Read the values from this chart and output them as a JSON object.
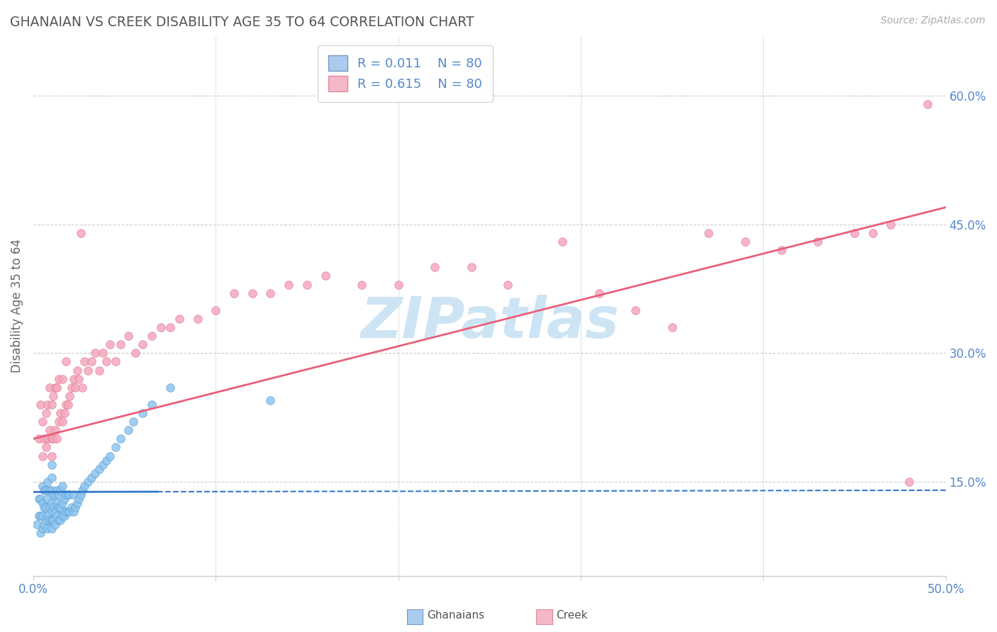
{
  "title": "GHANAIAN VS CREEK DISABILITY AGE 35 TO 64 CORRELATION CHART",
  "source_text": "Source: ZipAtlas.com",
  "ylabel": "Disability Age 35 to 64",
  "xlim": [
    0.0,
    0.5
  ],
  "ylim": [
    0.04,
    0.67
  ],
  "x_tick_labels": [
    "0.0%",
    "",
    "",
    "",
    "",
    "50.0%"
  ],
  "x_ticks": [
    0.0,
    0.1,
    0.2,
    0.3,
    0.4,
    0.5
  ],
  "y_ticks_right": [
    0.15,
    0.3,
    0.45,
    0.6
  ],
  "y_tick_labels_right": [
    "15.0%",
    "30.0%",
    "45.0%",
    "60.0%"
  ],
  "legend_r1": "R = 0.011",
  "legend_n1": "N = 80",
  "legend_r2": "R = 0.615",
  "legend_n2": "N = 80",
  "ghanaian_color": "#8ec6f0",
  "ghanaian_edge_color": "#5599cc",
  "creek_color": "#f4a8bc",
  "creek_edge_color": "#e07090",
  "ghanaian_line_color": "#3377cc",
  "creek_line_color": "#e8607a",
  "watermark": "ZIPatlas",
  "watermark_color": "#cde4f5",
  "background_color": "#ffffff",
  "grid_color": "#cccccc",
  "title_color": "#555555",
  "source_color": "#aaaaaa",
  "tick_color": "#5588cc",
  "legend_patch1_fc": "#aaccee",
  "legend_patch1_ec": "#7799bb",
  "legend_patch2_fc": "#f4b8c8",
  "legend_patch2_ec": "#e08898",
  "ghanaian_scatter_x": [
    0.002,
    0.003,
    0.003,
    0.004,
    0.004,
    0.004,
    0.005,
    0.005,
    0.005,
    0.005,
    0.006,
    0.006,
    0.006,
    0.007,
    0.007,
    0.007,
    0.008,
    0.008,
    0.008,
    0.008,
    0.009,
    0.009,
    0.009,
    0.01,
    0.01,
    0.01,
    0.01,
    0.01,
    0.01,
    0.01,
    0.011,
    0.011,
    0.011,
    0.012,
    0.012,
    0.012,
    0.013,
    0.013,
    0.013,
    0.014,
    0.014,
    0.014,
    0.015,
    0.015,
    0.015,
    0.016,
    0.016,
    0.016,
    0.017,
    0.017,
    0.018,
    0.018,
    0.019,
    0.019,
    0.02,
    0.02,
    0.021,
    0.022,
    0.022,
    0.023,
    0.024,
    0.025,
    0.026,
    0.027,
    0.028,
    0.03,
    0.032,
    0.034,
    0.036,
    0.038,
    0.04,
    0.042,
    0.045,
    0.048,
    0.052,
    0.055,
    0.06,
    0.065,
    0.075,
    0.13
  ],
  "ghanaian_scatter_y": [
    0.1,
    0.11,
    0.13,
    0.09,
    0.11,
    0.13,
    0.095,
    0.11,
    0.125,
    0.145,
    0.1,
    0.12,
    0.14,
    0.105,
    0.12,
    0.14,
    0.095,
    0.11,
    0.13,
    0.15,
    0.105,
    0.12,
    0.14,
    0.095,
    0.105,
    0.115,
    0.125,
    0.14,
    0.155,
    0.17,
    0.105,
    0.12,
    0.135,
    0.1,
    0.115,
    0.135,
    0.11,
    0.125,
    0.14,
    0.105,
    0.12,
    0.135,
    0.105,
    0.12,
    0.14,
    0.11,
    0.125,
    0.145,
    0.11,
    0.13,
    0.115,
    0.135,
    0.115,
    0.135,
    0.115,
    0.135,
    0.12,
    0.115,
    0.135,
    0.12,
    0.125,
    0.13,
    0.135,
    0.14,
    0.145,
    0.15,
    0.155,
    0.16,
    0.165,
    0.17,
    0.175,
    0.18,
    0.19,
    0.2,
    0.21,
    0.22,
    0.23,
    0.24,
    0.26,
    0.245
  ],
  "creek_scatter_x": [
    0.003,
    0.004,
    0.005,
    0.005,
    0.006,
    0.007,
    0.007,
    0.008,
    0.008,
    0.009,
    0.009,
    0.01,
    0.01,
    0.01,
    0.011,
    0.011,
    0.012,
    0.012,
    0.013,
    0.013,
    0.014,
    0.014,
    0.015,
    0.016,
    0.016,
    0.017,
    0.018,
    0.018,
    0.019,
    0.02,
    0.021,
    0.022,
    0.023,
    0.024,
    0.025,
    0.026,
    0.027,
    0.028,
    0.03,
    0.032,
    0.034,
    0.036,
    0.038,
    0.04,
    0.042,
    0.045,
    0.048,
    0.052,
    0.056,
    0.06,
    0.065,
    0.07,
    0.075,
    0.08,
    0.09,
    0.1,
    0.11,
    0.12,
    0.13,
    0.14,
    0.15,
    0.16,
    0.18,
    0.2,
    0.22,
    0.24,
    0.26,
    0.29,
    0.31,
    0.33,
    0.35,
    0.37,
    0.39,
    0.41,
    0.43,
    0.45,
    0.46,
    0.47,
    0.48,
    0.49
  ],
  "creek_scatter_y": [
    0.2,
    0.24,
    0.18,
    0.22,
    0.2,
    0.19,
    0.23,
    0.2,
    0.24,
    0.21,
    0.26,
    0.18,
    0.2,
    0.24,
    0.2,
    0.25,
    0.21,
    0.26,
    0.2,
    0.26,
    0.22,
    0.27,
    0.23,
    0.22,
    0.27,
    0.23,
    0.24,
    0.29,
    0.24,
    0.25,
    0.26,
    0.27,
    0.26,
    0.28,
    0.27,
    0.44,
    0.26,
    0.29,
    0.28,
    0.29,
    0.3,
    0.28,
    0.3,
    0.29,
    0.31,
    0.29,
    0.31,
    0.32,
    0.3,
    0.31,
    0.32,
    0.33,
    0.33,
    0.34,
    0.34,
    0.35,
    0.37,
    0.37,
    0.37,
    0.38,
    0.38,
    0.39,
    0.38,
    0.38,
    0.4,
    0.4,
    0.38,
    0.43,
    0.37,
    0.35,
    0.33,
    0.44,
    0.43,
    0.42,
    0.43,
    0.44,
    0.44,
    0.45,
    0.15,
    0.59
  ],
  "ghanaian_line_y0": 0.138,
  "ghanaian_line_y1": 0.14,
  "ghanaian_line_solid_x1": 0.068,
  "creek_line_y0": 0.2,
  "creek_line_y1": 0.47
}
